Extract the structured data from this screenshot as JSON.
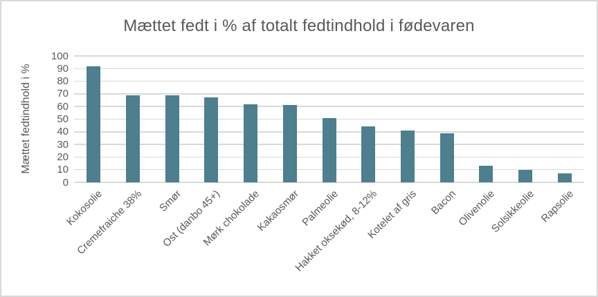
{
  "chart_data": {
    "type": "bar",
    "title": "Mættet fedt i % af totalt fedtindhold i fødevaren",
    "ylabel": "Mættet fedtindhold i %",
    "xlabel": "",
    "categories": [
      "Kokosolie",
      "Cremefraiche 38%",
      "Smør",
      "Ost (danbo 45+)",
      "Mørk chokolade",
      "Kakaosmør",
      "Palmeolie",
      "Hakket oksekød, 8-12%",
      "Kotelet af gris",
      "Bacon",
      "Olivenolie",
      "Solsikkeolie",
      "Rapsolie"
    ],
    "values": [
      92,
      69,
      69,
      67,
      62,
      61,
      51,
      44,
      41,
      39,
      13,
      10,
      7
    ],
    "ylim": [
      0,
      100
    ],
    "yticks": [
      0,
      10,
      20,
      30,
      40,
      50,
      60,
      70,
      80,
      90,
      100
    ],
    "grid": true,
    "legend_position": "none",
    "colors": {
      "bar": "#4D7F8E",
      "grid": "#D9D9D9",
      "axis_text": "#595959",
      "title_text": "#595959",
      "border": "#D9D9D9"
    }
  }
}
